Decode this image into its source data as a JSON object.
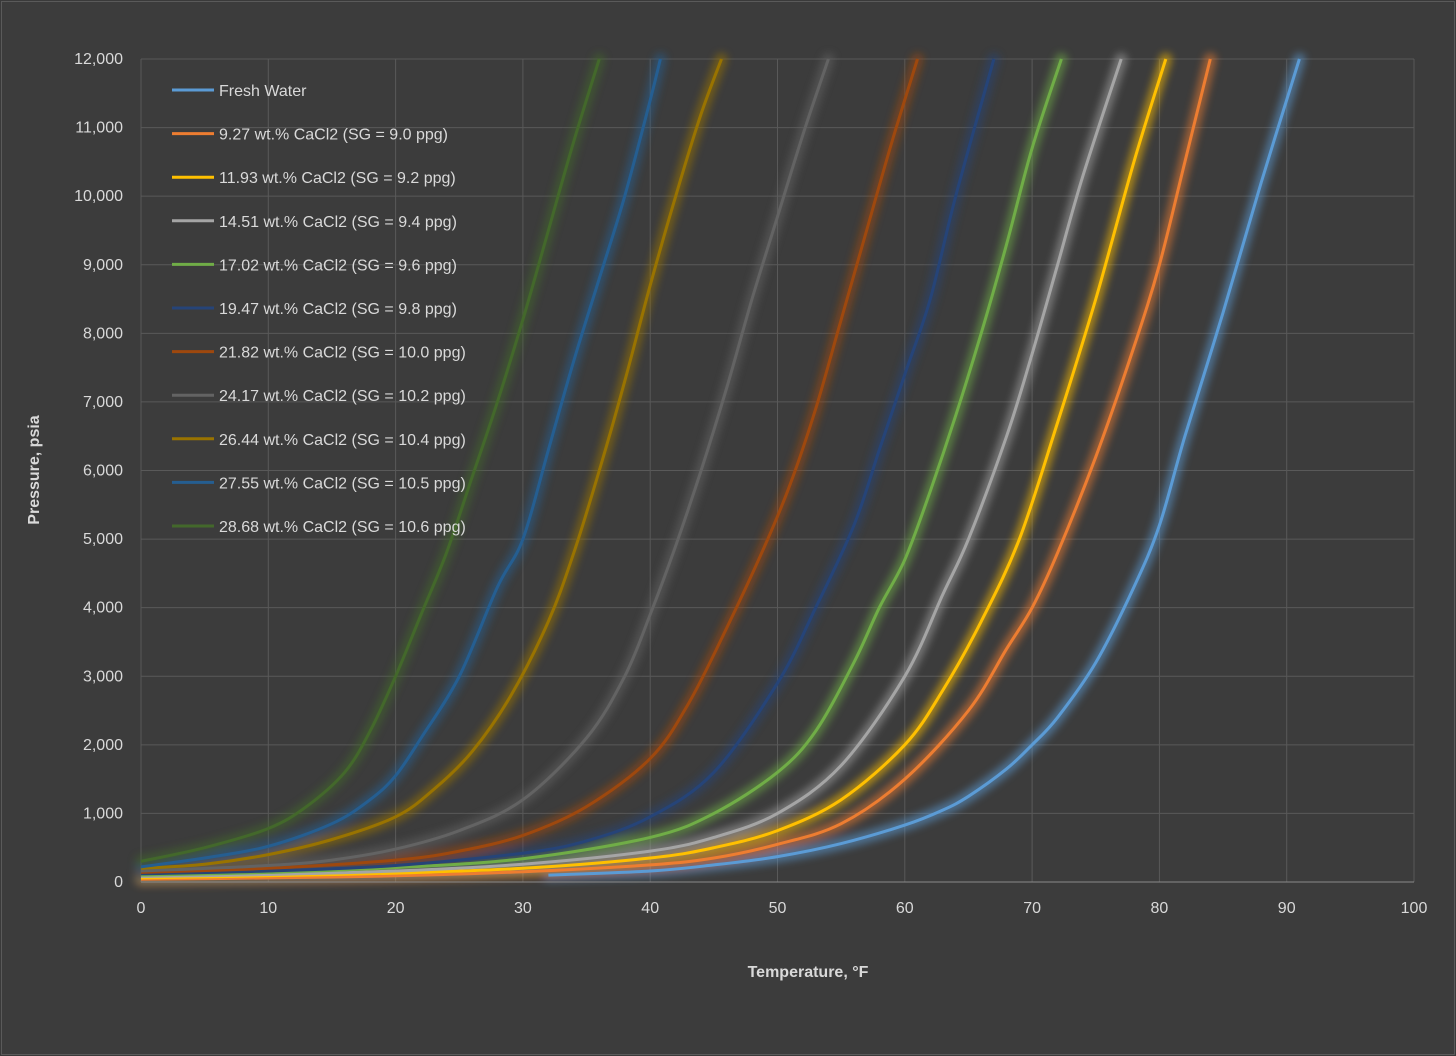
{
  "chart_data": {
    "type": "line",
    "title": "",
    "xlabel": "Temperature, °F",
    "ylabel": "Pressure, psia",
    "xlim": [
      0,
      100
    ],
    "ylim": [
      0,
      12000
    ],
    "xticks": [
      0,
      10,
      20,
      30,
      40,
      50,
      60,
      70,
      80,
      90,
      100
    ],
    "xtick_labels": [
      "0",
      "10",
      "20",
      "30",
      "40",
      "50",
      "60",
      "70",
      "80",
      "90",
      "100"
    ],
    "yticks": [
      0,
      1000,
      2000,
      3000,
      4000,
      5000,
      6000,
      7000,
      8000,
      9000,
      10000,
      11000,
      12000
    ],
    "ytick_labels": [
      "0",
      "1,000",
      "2,000",
      "3,000",
      "4,000",
      "5,000",
      "6,000",
      "7,000",
      "8,000",
      "9,000",
      "10,000",
      "11,000",
      "12,000"
    ],
    "grid": true,
    "legend_position": "top-left",
    "series": [
      {
        "name": "Fresh Water",
        "color": "#5b9bd5",
        "x": [
          32,
          40,
          45,
          50,
          55,
          60,
          63,
          65,
          68,
          70,
          72,
          75,
          78,
          80,
          82,
          85,
          88,
          91
        ],
        "y": [
          100,
          160,
          250,
          370,
          560,
          830,
          1050,
          1250,
          1650,
          2000,
          2400,
          3200,
          4300,
          5200,
          6500,
          8300,
          10200,
          12000
        ]
      },
      {
        "name": "9.27 wt.% CaCl2 (SG = 9.0 ppg)",
        "color": "#ed7d31",
        "x": [
          0,
          10,
          20,
          30,
          40,
          45,
          50,
          55,
          60,
          65,
          68,
          70,
          72,
          75,
          78,
          80,
          82,
          84
        ],
        "y": [
          40,
          60,
          90,
          150,
          250,
          350,
          550,
          850,
          1500,
          2500,
          3400,
          4000,
          4800,
          6200,
          7800,
          9000,
          10500,
          12000
        ]
      },
      {
        "name": "11.93 wt.% CaCl2 (SG = 9.2 ppg)",
        "color": "#ffc000",
        "x": [
          0,
          10,
          20,
          30,
          40,
          45,
          50,
          55,
          60,
          63,
          66,
          69,
          72,
          75,
          78,
          80.5
        ],
        "y": [
          60,
          90,
          130,
          200,
          350,
          500,
          750,
          1200,
          2000,
          2800,
          3800,
          5000,
          6700,
          8500,
          10500,
          12000
        ]
      },
      {
        "name": "14.51 wt.% CaCl2 (SG = 9.4 ppg)",
        "color": "#a5a5a5",
        "x": [
          0,
          10,
          20,
          30,
          40,
          45,
          50,
          55,
          60,
          63,
          65,
          68,
          70,
          72,
          74,
          77
        ],
        "y": [
          80,
          110,
          160,
          260,
          450,
          650,
          1000,
          1700,
          3000,
          4200,
          5000,
          6500,
          7700,
          9000,
          10300,
          12000
        ]
      },
      {
        "name": "17.02 wt.% CaCl2 (SG = 9.6 ppg)",
        "color": "#70ad47",
        "x": [
          0,
          10,
          20,
          30,
          40,
          45,
          50,
          53,
          56,
          58,
          60,
          62,
          64,
          66,
          68,
          70,
          72.3
        ],
        "y": [
          100,
          140,
          210,
          340,
          650,
          1000,
          1600,
          2200,
          3200,
          4000,
          4700,
          5700,
          6800,
          8000,
          9300,
          10700,
          12000
        ]
      },
      {
        "name": "19.47 wt.% CaCl2 (SG = 9.8 ppg)",
        "color": "#264478",
        "x": [
          0,
          10,
          20,
          30,
          35,
          40,
          45,
          50,
          53,
          56,
          58,
          60,
          62,
          64,
          67
        ],
        "y": [
          120,
          160,
          240,
          420,
          600,
          950,
          1600,
          2900,
          4000,
          5200,
          6300,
          7400,
          8500,
          10000,
          12000
        ]
      },
      {
        "name": "21.82 wt.% CaCl2 (SG = 10.0 ppg)",
        "color": "#9e480e",
        "x": [
          0,
          10,
          20,
          25,
          30,
          35,
          40,
          43,
          46,
          49,
          51,
          53,
          55,
          57,
          59,
          61
        ],
        "y": [
          140,
          200,
          320,
          450,
          680,
          1100,
          1800,
          2600,
          3700,
          4900,
          5800,
          6900,
          8200,
          9500,
          10800,
          12000
        ]
      },
      {
        "name": "24.17 wt.% CaCl2 (SG = 10.2 ppg)",
        "color": "#636363",
        "x": [
          0,
          10,
          15,
          20,
          25,
          30,
          35,
          38,
          40,
          42,
          44,
          46,
          48,
          50,
          52,
          54
        ],
        "y": [
          160,
          240,
          320,
          480,
          750,
          1200,
          2100,
          3000,
          3900,
          4900,
          6000,
          7200,
          8500,
          9700,
          10900,
          12000
        ]
      },
      {
        "name": "26.44 wt.% CaCl2 (SG = 10.4 ppg)",
        "color": "#997300",
        "x": [
          0,
          5,
          10,
          15,
          20,
          23,
          26,
          29,
          32,
          34,
          36,
          38,
          40,
          42,
          44,
          45.6
        ],
        "y": [
          200,
          260,
          400,
          620,
          950,
          1350,
          1900,
          2700,
          3800,
          4800,
          6000,
          7300,
          8700,
          10000,
          11200,
          12000
        ]
      },
      {
        "name": "27.55 wt.% CaCl2 (SG = 10.5 ppg)",
        "color": "#255e91",
        "x": [
          0,
          5,
          10,
          15,
          18,
          20,
          22,
          25,
          28,
          30,
          32,
          34,
          36,
          38,
          40,
          40.8
        ],
        "y": [
          220,
          350,
          520,
          850,
          1200,
          1550,
          2100,
          3000,
          4300,
          5000,
          6300,
          7600,
          8800,
          10000,
          11400,
          12000
        ]
      },
      {
        "name": "28.68 wt.% CaCl2 (SG = 10.6 ppg)",
        "color": "#43682b",
        "x": [
          0,
          5,
          10,
          13,
          16,
          18,
          20,
          22,
          24,
          26,
          28,
          30,
          32,
          34,
          36
        ],
        "y": [
          300,
          500,
          780,
          1100,
          1600,
          2200,
          3000,
          3900,
          4800,
          5900,
          7000,
          8200,
          9500,
          10800,
          12000
        ]
      }
    ]
  }
}
